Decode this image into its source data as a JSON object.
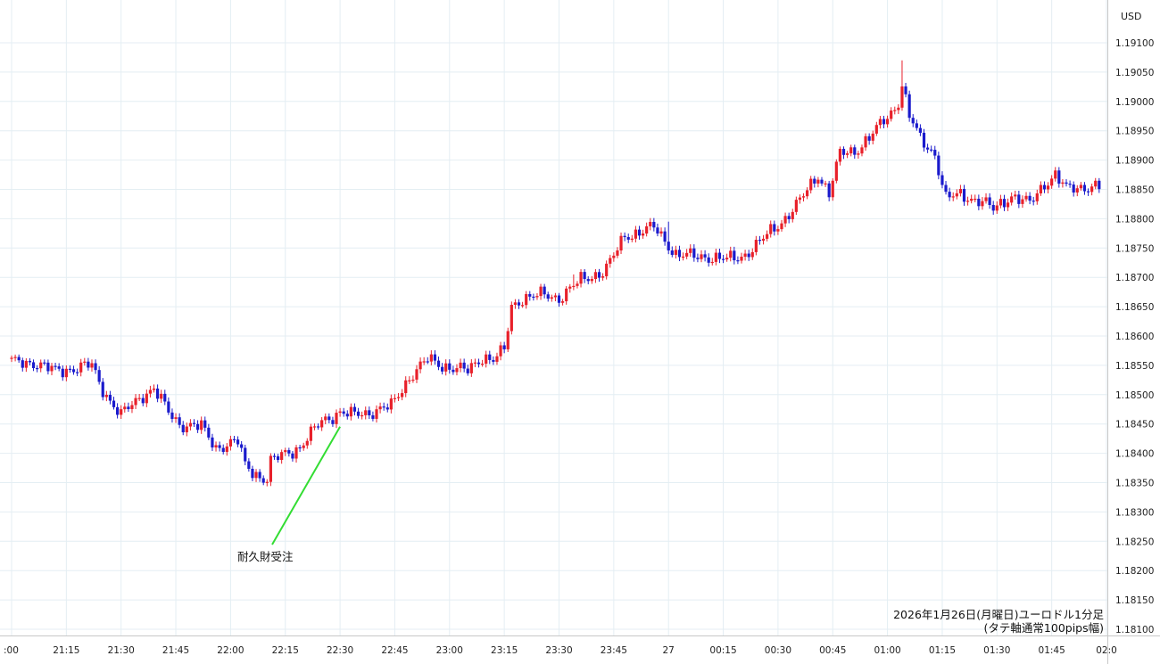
{
  "chart_data": {
    "type": "candlestick",
    "currency": "USD",
    "note_line1": "2026年1月26日(月曜日)ユーロドル1分足",
    "note_line2": "(タテ軸通常100pips幅)",
    "annotation": {
      "label": "耐久財受注",
      "time": "22:30",
      "price": 1.1845
    },
    "ylim": [
      1.18085,
      1.1915
    ],
    "y_ticks": [
      "1.18100",
      "1.18150",
      "1.18200",
      "1.18250",
      "1.18300",
      "1.18350",
      "1.18400",
      "1.18450",
      "1.18500",
      "1.18550",
      "1.18600",
      "1.18650",
      "1.18700",
      "1.18750",
      "1.18800",
      "1.18850",
      "1.18900",
      "1.18950",
      "1.19000",
      "1.19050",
      "1.19100"
    ],
    "x_ticks": [
      ":00",
      "21:15",
      "21:30",
      "21:45",
      "22:00",
      "22:15",
      "22:30",
      "22:45",
      "23:00",
      "23:15",
      "23:30",
      "23:45",
      "27",
      "00:15",
      "00:30",
      "00:45",
      "01:00",
      "01:15",
      "01:30",
      "01:45",
      "02:0"
    ],
    "colors": {
      "up": "#e8202a",
      "down": "#1a1acc",
      "annotation_line": "#33dd33"
    },
    "path_price": [
      [
        "21:00",
        1.18555
      ],
      [
        "21:06",
        1.18555
      ],
      [
        "21:12",
        1.1854
      ],
      [
        "21:22",
        1.1855
      ],
      [
        "21:24",
        1.1852
      ],
      [
        "21:27",
        1.1849
      ],
      [
        "21:30",
        1.18465
      ],
      [
        "21:36",
        1.185
      ],
      [
        "21:39",
        1.1851
      ],
      [
        "21:43",
        1.1847
      ],
      [
        "21:46",
        1.1845
      ],
      [
        "21:52",
        1.18445
      ],
      [
        "21:56",
        1.1841
      ],
      [
        "22:02",
        1.1842
      ],
      [
        "22:04",
        1.1838
      ],
      [
        "22:08",
        1.1836
      ],
      [
        "22:10",
        1.18355
      ],
      [
        "22:11",
        1.18385
      ],
      [
        "22:15",
        1.184
      ],
      [
        "22:19",
        1.1841
      ],
      [
        "22:25",
        1.18455
      ],
      [
        "22:30",
        1.1847
      ],
      [
        "22:33",
        1.18465
      ],
      [
        "22:38",
        1.1847
      ],
      [
        "22:44",
        1.1848
      ],
      [
        "22:49",
        1.1853
      ],
      [
        "22:54",
        1.1856
      ],
      [
        "22:58",
        1.1855
      ],
      [
        "23:05",
        1.1854
      ],
      [
        "23:09",
        1.18565
      ],
      [
        "23:12",
        1.1856
      ],
      [
        "23:15",
        1.18575
      ],
      [
        "23:17",
        1.1865
      ],
      [
        "23:20",
        1.18665
      ],
      [
        "23:26",
        1.1867
      ],
      [
        "23:30",
        1.18665
      ],
      [
        "23:36",
        1.18695
      ],
      [
        "23:42",
        1.1871
      ],
      [
        "23:44",
        1.18725
      ],
      [
        "23:48",
        1.1877
      ],
      [
        "23:53",
        1.1878
      ],
      [
        "23:56",
        1.18785
      ],
      [
        "00:02",
        1.1874
      ],
      [
        "00:07",
        1.18735
      ],
      [
        "00:12",
        1.18735
      ],
      [
        "00:16",
        1.1873
      ],
      [
        "00:20",
        1.18735
      ],
      [
        "00:25",
        1.1876
      ],
      [
        "00:31",
        1.18795
      ],
      [
        "00:36",
        1.1883
      ],
      [
        "00:41",
        1.18875
      ],
      [
        "00:44",
        1.18845
      ],
      [
        "00:47",
        1.1891
      ],
      [
        "00:51",
        1.18915
      ],
      [
        "00:56",
        1.18945
      ],
      [
        "01:01",
        1.1898
      ],
      [
        "01:03",
        1.19
      ],
      [
        "01:04",
        1.1903
      ],
      [
        "01:06",
        1.18975
      ],
      [
        "01:09",
        1.18935
      ],
      [
        "01:13",
        1.1891
      ],
      [
        "01:16",
        1.18835
      ],
      [
        "01:20",
        1.1884
      ],
      [
        "01:26",
        1.1883
      ],
      [
        "01:29",
        1.18815
      ],
      [
        "01:34",
        1.1884
      ],
      [
        "01:39",
        1.18825
      ],
      [
        "01:43",
        1.1886
      ],
      [
        "01:46",
        1.18875
      ],
      [
        "01:49",
        1.1885
      ],
      [
        "01:54",
        1.18855
      ],
      [
        "01:58",
        1.18855
      ]
    ],
    "spikes": [
      [
        "01:04",
        1.1907
      ],
      [
        "00:00",
        1.18795
      ],
      [
        "23:34",
        1.18705
      ]
    ]
  }
}
